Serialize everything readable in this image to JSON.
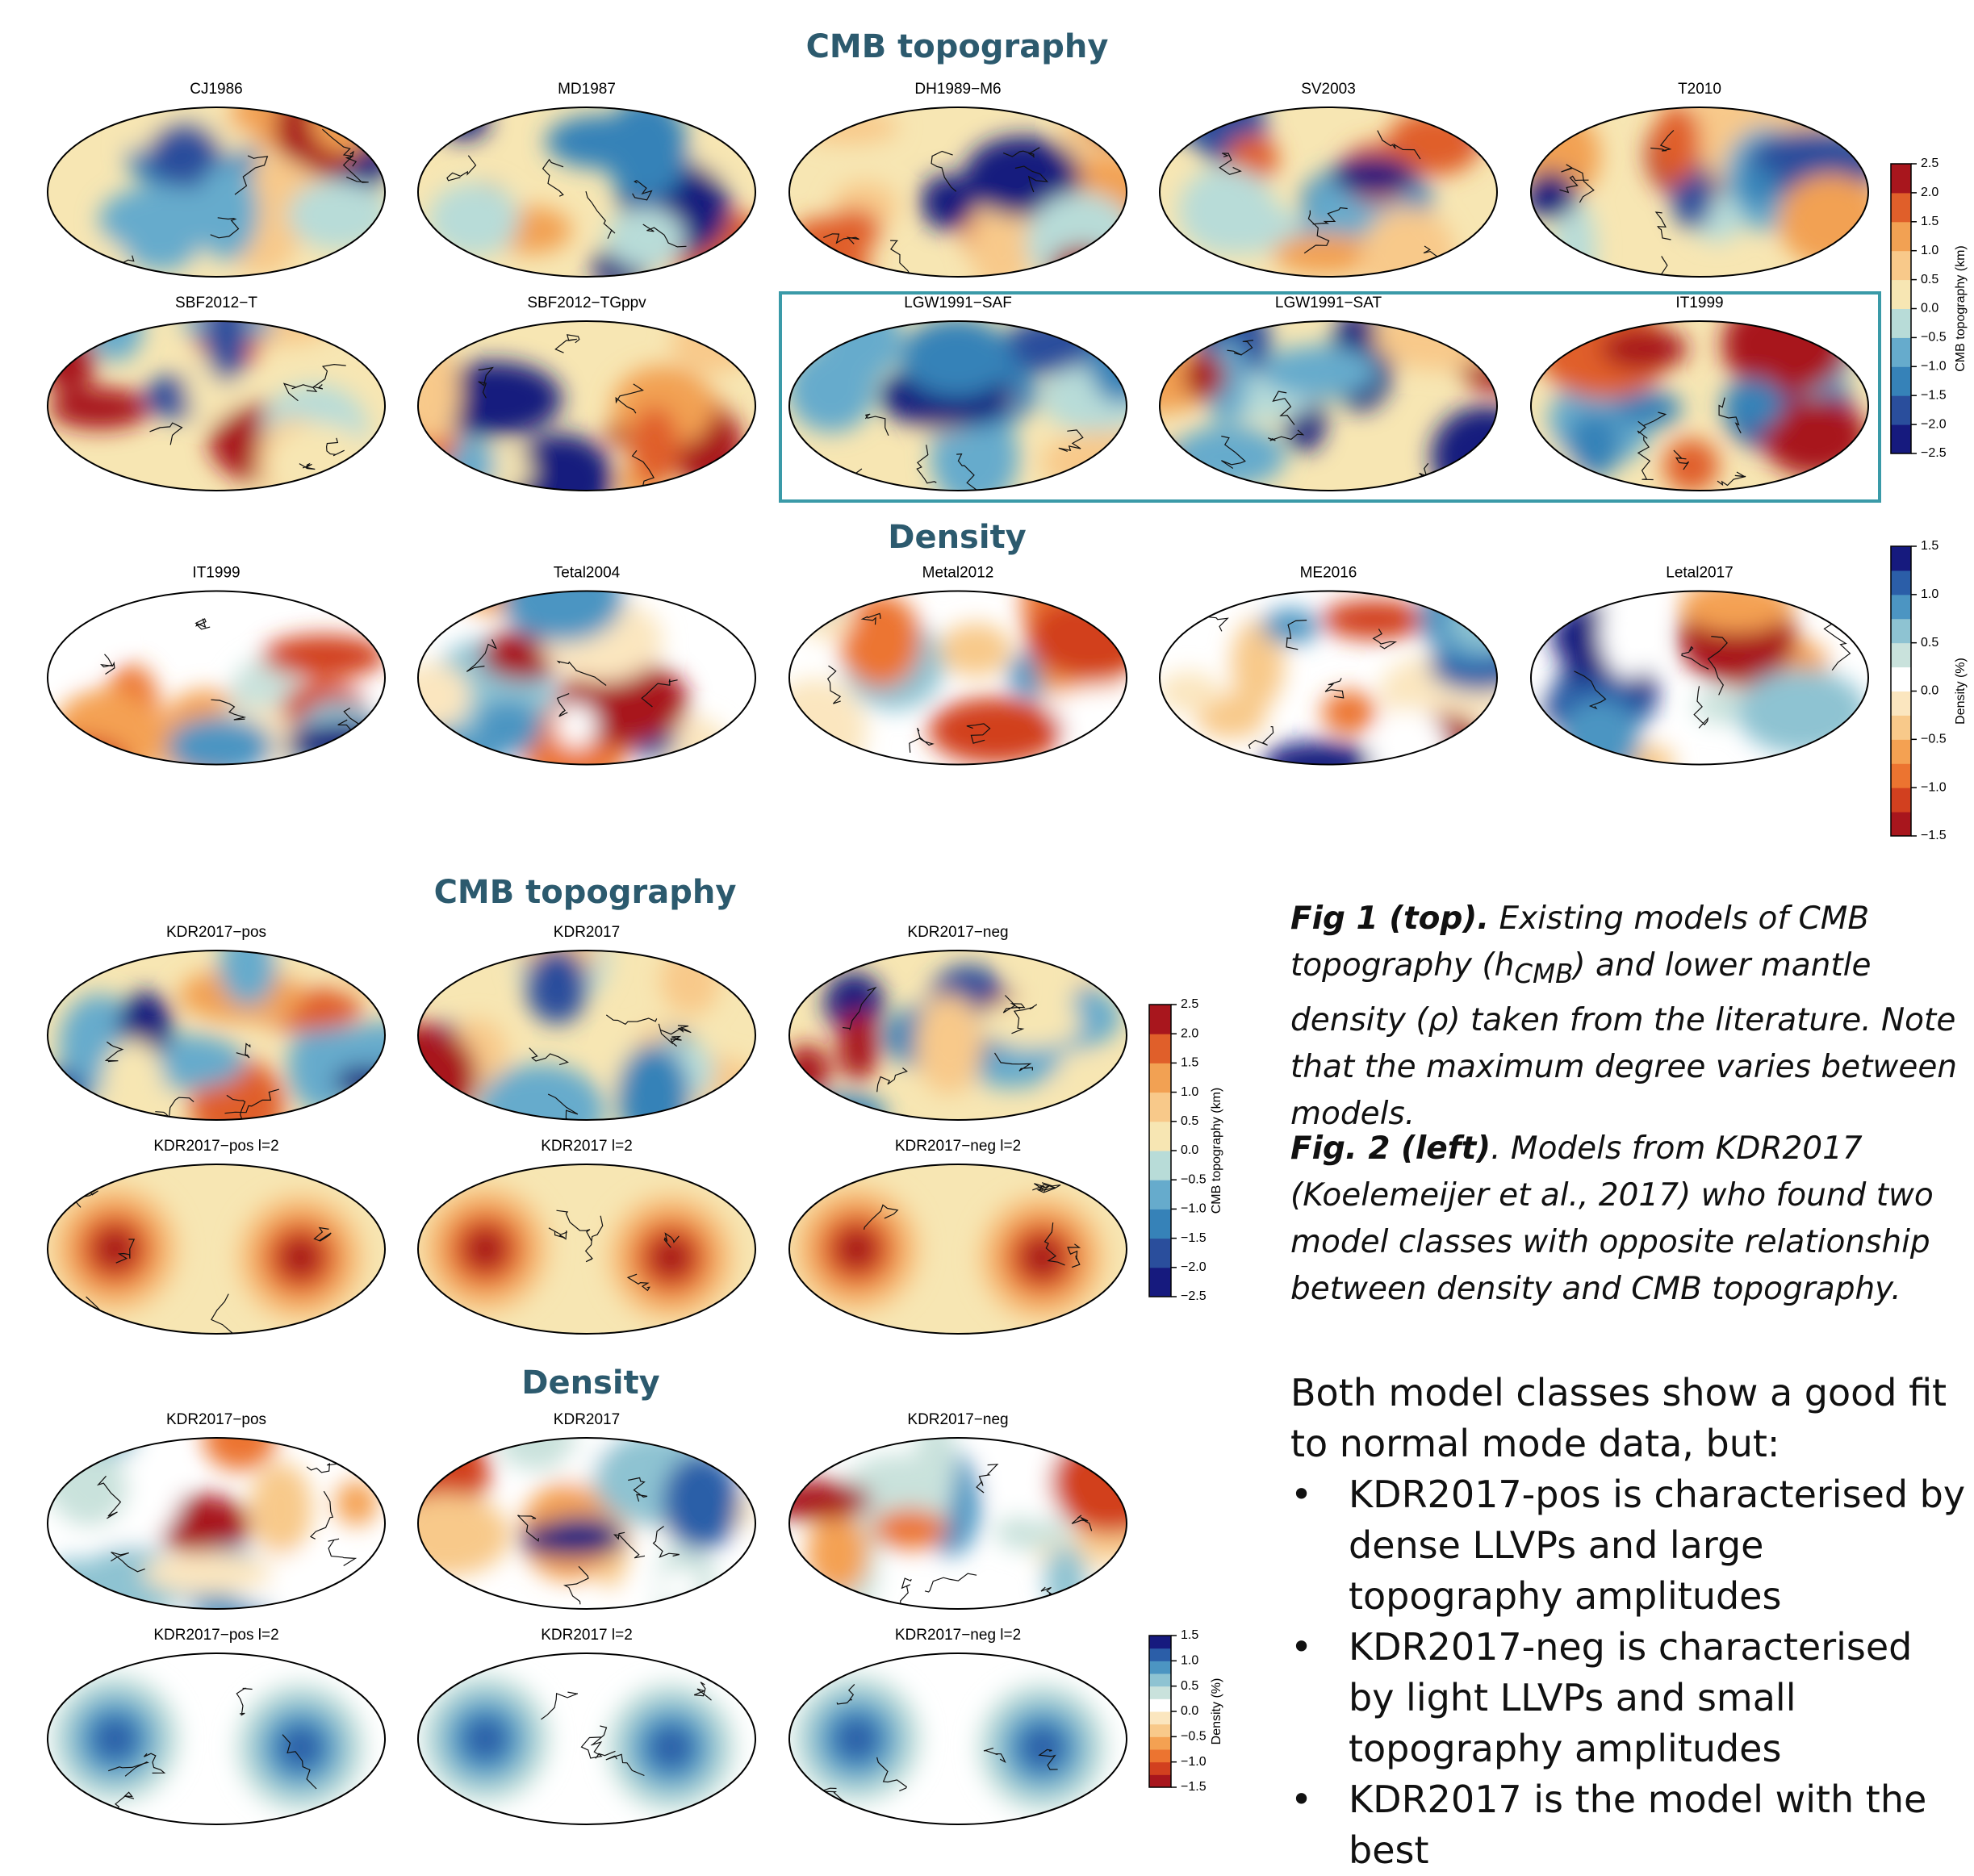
{
  "fig1": {
    "cmb_title": "CMB topography",
    "cmb_maps": [
      "CJ1986",
      "MD1987",
      "DH1989−M6",
      "SV2003",
      "T2010",
      "SBF2012−T",
      "SBF2012−TGppv",
      "LGW1991−SAF",
      "LGW1991−SAT",
      "IT1999"
    ],
    "density_title": "Density",
    "density_maps": [
      "IT1999",
      "Tetal2004",
      "Metal2012",
      "ME2016",
      "Letal2017"
    ]
  },
  "fig2": {
    "cmb_title": "CMB topography",
    "cmb_maps": [
      "KDR2017−pos",
      "KDR2017",
      "KDR2017−neg",
      "KDR2017−pos l=2",
      "KDR2017 l=2",
      "KDR2017−neg l=2"
    ],
    "density_title": "Density",
    "density_maps": [
      "KDR2017−pos",
      "KDR2017",
      "KDR2017−neg",
      "KDR2017−pos l=2",
      "KDR2017 l=2",
      "KDR2017−neg l=2"
    ]
  },
  "colorbars": {
    "cmb": {
      "label": "CMB topography (km)",
      "lim": [
        -2.5,
        2.5
      ],
      "ticks": [
        2.5,
        {
          "value": 2,
          "label": "2.0"
        },
        1.5,
        {
          "value": 1,
          "label": "1.0"
        },
        0.5,
        {
          "value": 0,
          "label": "0.0"
        },
        {
          "value": -0.5,
          "label": "−0.5"
        },
        {
          "value": -1,
          "label": "−1.0"
        },
        {
          "value": -1.5,
          "label": "−1.5"
        },
        {
          "value": -2,
          "label": "−2.0"
        },
        {
          "value": -2.5,
          "label": "−2.5"
        }
      ],
      "colors": [
        "#161a7e",
        "#2a4e9c",
        "#3682b8",
        "#66abcc",
        "#b8dcd8",
        "#f7e6b3",
        "#f8c98a",
        "#f2a153",
        "#e05f2a",
        "#a8161d"
      ]
    },
    "density": {
      "label": "Density (%)",
      "lim": [
        -1.5,
        1.5
      ],
      "ticks": [
        1.5,
        {
          "value": 1,
          "label": "1.0"
        },
        0.5,
        {
          "value": 0,
          "label": "0.0"
        },
        {
          "value": -0.5,
          "label": "−0.5"
        },
        {
          "value": -1,
          "label": "−1.0"
        },
        {
          "value": -1.5,
          "label": "−1.5"
        }
      ],
      "colors": [
        "#a8161d",
        "#d2401f",
        "#ec7430",
        "#f4a152",
        "#f8c98a",
        "#fbe6bf",
        "#ffffff",
        "#c9e2dc",
        "#8ec3d2",
        "#4c95c2",
        "#2b5ea8",
        "#161a7e"
      ]
    }
  },
  "captions": {
    "fig1": {
      "lead": "Fig 1 (top).",
      "text_before": " Existing models of CMB topography (h",
      "subscript": "CMB",
      "text_after": ") and lower mantle density (ρ) taken from the literature. Note that the maximum degree varies between models."
    },
    "fig2": {
      "lead": "Fig. 2 (left)",
      "text": ". Models from KDR2017 (Koelemeijer et al., 2017) who found two model classes with opposite relationship between density and CMB topography."
    }
  },
  "body": {
    "intro": "Both model classes show a good fit to normal mode data, but:",
    "bullets": [
      "KDR2017-pos is characterised by dense LLVPs and large topography amplitudes",
      "KDR2017-neg is characterised by light LLVPs and small topography amplitudes",
      "KDR2017 is the model with the best"
    ]
  }
}
